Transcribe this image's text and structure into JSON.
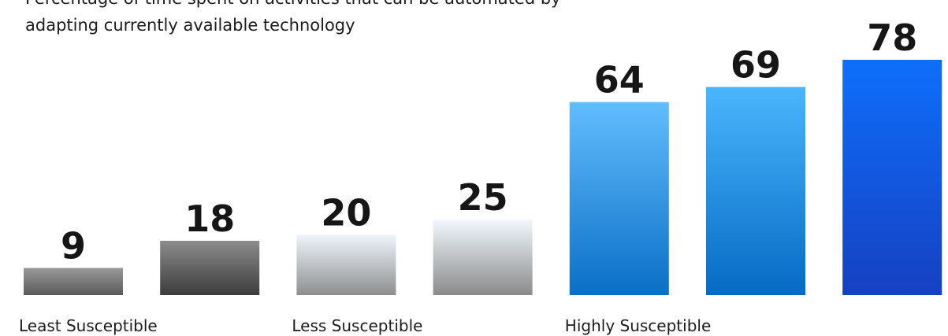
{
  "chart_data": {
    "type": "bar",
    "title_lines": [
      "Percentage of time spent on activities that can be automated by",
      "adapting currently available technology"
    ],
    "values": [
      9,
      18,
      20,
      25,
      64,
      69,
      78
    ],
    "groups": [
      {
        "label": "Least Susceptible",
        "bars": [
          0,
          1
        ],
        "colors": [
          "#9a9a9a",
          "#4a4a4a"
        ]
      },
      {
        "label": "Less Susceptible",
        "bars": [
          2,
          3
        ],
        "colors": [
          "#eef6fc",
          "#8e8e8e"
        ]
      },
      {
        "label": "Highly Susceptible",
        "bars": [
          4,
          5,
          6
        ],
        "colors": [
          "#62bdfd",
          "#0a6fc6"
        ]
      }
    ],
    "bar_colors": [
      [
        "#9a9a9a",
        "#5a5a5a"
      ],
      [
        "#8c8c8c",
        "#3c3c3c"
      ],
      [
        "#eef6fc",
        "#8e8e8e"
      ],
      [
        "#f2f8fd",
        "#8a8a8a"
      ],
      [
        "#62bdfd",
        "#0a6fc6"
      ],
      [
        "#4ab6fd",
        "#066ac4"
      ],
      [
        "#0e6ffb",
        "#1640c2"
      ]
    ],
    "ylim": [
      0,
      78
    ],
    "grid": false,
    "legend": "none"
  }
}
